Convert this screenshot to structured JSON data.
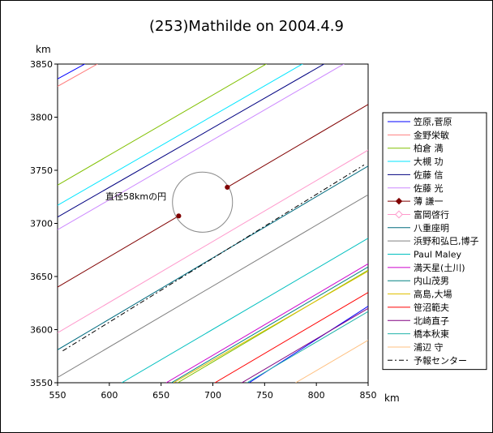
{
  "chart_data": {
    "type": "line",
    "title": "(253)Mathilde on 2004.4.9",
    "x_unit": "km",
    "y_unit": "km",
    "xlim": [
      550,
      850
    ],
    "ylim": [
      3550,
      3850
    ],
    "x_ticks": [
      550,
      600,
      650,
      700,
      750,
      800,
      850
    ],
    "y_ticks": [
      3550,
      3600,
      3650,
      3700,
      3750,
      3800,
      3850
    ],
    "grid": false,
    "legend_position": "right",
    "circle": {
      "label": "直径58kmの円",
      "center": [
        690,
        3720
      ],
      "diameter": 58
    },
    "series": [
      {
        "name": "笠原,菅原",
        "color": "#0000ff",
        "segments": [
          [
            [
              550,
              3836
            ],
            [
              580,
              3852
            ]
          ],
          [
            [
              735,
              3550
            ],
            [
              850,
              3622
            ]
          ]
        ]
      },
      {
        "name": "金野栄敏",
        "color": "#ff7f7f",
        "segments": [
          [
            [
              550,
              3829
            ],
            [
              592,
              3852
            ]
          ]
        ]
      },
      {
        "name": "柏倉 満",
        "color": "#80c000",
        "segments": [
          [
            [
              550,
              3736
            ],
            [
              755,
              3852
            ]
          ],
          [
            [
              666,
              3550
            ],
            [
              850,
              3656
            ]
          ]
        ]
      },
      {
        "name": "大槻 功",
        "color": "#00e5ff",
        "segments": [
          [
            [
              550,
              3717
            ],
            [
              790,
              3852
            ]
          ]
        ]
      },
      {
        "name": "佐藤 信",
        "color": "#000080",
        "segments": [
          [
            [
              550,
              3706
            ],
            [
              811,
              3852
            ]
          ]
        ]
      },
      {
        "name": "佐藤 光",
        "color": "#cc88ff",
        "segments": [
          [
            [
              550,
              3694
            ],
            [
              830,
              3852
            ]
          ]
        ]
      },
      {
        "name": "薄 謙一",
        "color": "#800000",
        "segments": [
          [
            [
              550,
              3640
            ],
            [
              667,
              3707
            ]
          ],
          [
            [
              714,
              3734
            ],
            [
              850,
              3812
            ]
          ]
        ]
      },
      {
        "name": "富岡啓行",
        "color": "#ff99cc",
        "segments": [
          [
            [
              550,
              3597
            ],
            [
              850,
              3769
            ]
          ]
        ]
      },
      {
        "name": "八重座明",
        "color": "#006b7f",
        "segments": [
          [
            [
              550,
              3581
            ],
            [
              850,
              3754
            ]
          ]
        ]
      },
      {
        "name": "浜野和弘巳,博子",
        "color": "#808080",
        "segments": [
          [
            [
              550,
              3555
            ],
            [
              850,
              3727
            ]
          ]
        ]
      },
      {
        "name": "Paul Maley",
        "color": "#00bfbf",
        "segments": [
          [
            [
              612,
              3550
            ],
            [
              850,
              3686
            ]
          ]
        ]
      },
      {
        "name": "満天星(土川)",
        "color": "#cc00cc",
        "segments": [
          [
            [
              655,
              3550
            ],
            [
              850,
              3662
            ]
          ]
        ]
      },
      {
        "name": "内山茂男",
        "color": "#008080",
        "segments": [
          [
            [
              660,
              3550
            ],
            [
              850,
              3659
            ]
          ]
        ]
      },
      {
        "name": "高島,大場",
        "color": "#e0c000",
        "segments": [
          [
            [
              662,
              3550
            ],
            [
              850,
              3655
            ]
          ]
        ]
      },
      {
        "name": "笹沼範夫",
        "color": "#ff0000",
        "segments": [
          [
            [
              702,
              3550
            ],
            [
              850,
              3635
            ]
          ]
        ]
      },
      {
        "name": "北崎直子",
        "color": "#800080",
        "segments": [
          [
            [
              728,
              3550
            ],
            [
              850,
              3620
            ]
          ]
        ]
      },
      {
        "name": "橋本秋東",
        "color": "#20b2aa",
        "segments": [
          [
            [
              733,
              3550
            ],
            [
              850,
              3617
            ]
          ]
        ]
      },
      {
        "name": "浦辺 守",
        "color": "#ffc080",
        "segments": [
          [
            [
              780,
              3550
            ],
            [
              850,
              3590
            ]
          ]
        ]
      },
      {
        "name": "予報センター",
        "color": "#000000",
        "dash": "6,3,2,3",
        "segments": [
          [
            [
              555,
              3580
            ],
            [
              846,
              3755
            ]
          ]
        ]
      }
    ]
  }
}
